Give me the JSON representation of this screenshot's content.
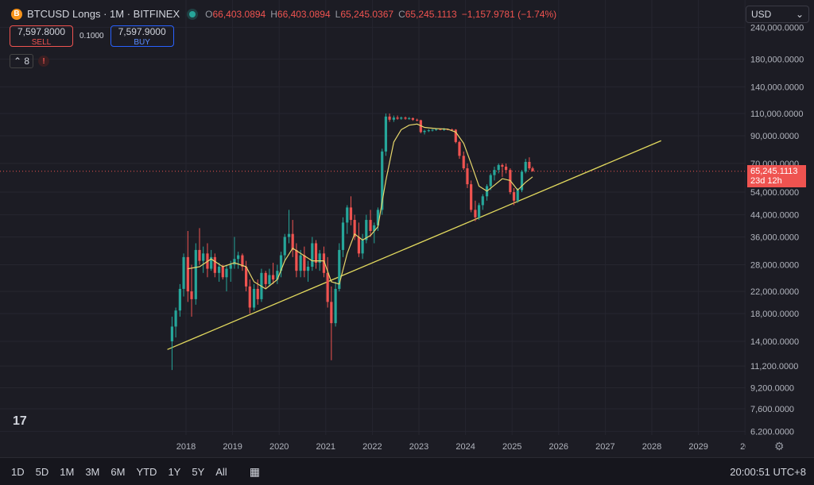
{
  "header": {
    "symbol_icon": "B",
    "title": "BTCUSD Longs · 1M · BITFINEX",
    "ohlc": {
      "o_label": "O",
      "o": "66,403.0894",
      "h_label": "H",
      "h": "66,403.0894",
      "l_label": "L",
      "l": "65,245.0367",
      "c_label": "C",
      "c": "65,245.1113",
      "change": "−1,157.9781 (−1.74%)"
    }
  },
  "trade": {
    "sell_price": "7,597.8000",
    "sell_label": "SELL",
    "qty": "0.1000",
    "buy_price": "7,597.9000",
    "buy_label": "BUY"
  },
  "indicators": {
    "count": "8",
    "warning": "!"
  },
  "currency": {
    "selected": "USD"
  },
  "current_price": {
    "value": "65,245.1113",
    "countdown": "23d 12h"
  },
  "logo": "17",
  "bottom_bar": {
    "ranges": [
      "1D",
      "5D",
      "1M",
      "3M",
      "6M",
      "YTD",
      "1Y",
      "5Y",
      "All"
    ],
    "clock": "20:00:51 UTC+8"
  },
  "colors": {
    "up": "#26a69a",
    "down": "#ef5350",
    "ma": "#e6d66b",
    "trendline": "#e2d95e",
    "current_line": "#ef5350"
  },
  "chart_data": {
    "type": "candlestick",
    "scale": "log",
    "y_ticks": [
      240000,
      180000,
      140000,
      110000,
      90000,
      70000,
      54000,
      44000,
      36000,
      28000,
      22000,
      18000,
      14000,
      11200,
      9200,
      7600,
      6200
    ],
    "y_tick_labels": [
      "240,000.0000",
      "180,000.0000",
      "140,000.0000",
      "110,000.0000",
      "90,000.0000",
      "70,000.0000",
      "54,000.0000",
      "44,000.0000",
      "36,000.0000",
      "28,000.0000",
      "22,000.0000",
      "18,000.0000",
      "14,000.0000",
      "11,200.0000",
      "9,200.0000",
      "7,600.0000",
      "6,200.0000"
    ],
    "x_tick_labels": [
      "2018",
      "2019",
      "2020",
      "2021",
      "2022",
      "2023",
      "2024",
      "2025",
      "2026",
      "2027",
      "2028",
      "2029",
      "20"
    ],
    "candles": [
      {
        "t": 2017.7,
        "o": 14000,
        "h": 17500,
        "l": 10800,
        "c": 16000
      },
      {
        "t": 2017.78,
        "o": 16000,
        "h": 19000,
        "l": 14500,
        "c": 18500
      },
      {
        "t": 2017.87,
        "o": 18500,
        "h": 23500,
        "l": 17500,
        "c": 22500
      },
      {
        "t": 2017.95,
        "o": 22500,
        "h": 31000,
        "l": 21000,
        "c": 30000
      },
      {
        "t": 2018.04,
        "o": 30000,
        "h": 38000,
        "l": 20000,
        "c": 22000
      },
      {
        "t": 2018.12,
        "o": 22000,
        "h": 28000,
        "l": 17500,
        "c": 20500
      },
      {
        "t": 2018.21,
        "o": 20500,
        "h": 34000,
        "l": 19500,
        "c": 32000
      },
      {
        "t": 2018.29,
        "o": 32000,
        "h": 39000,
        "l": 28000,
        "c": 29000
      },
      {
        "t": 2018.37,
        "o": 29000,
        "h": 33000,
        "l": 26000,
        "c": 31000
      },
      {
        "t": 2018.46,
        "o": 31000,
        "h": 34000,
        "l": 25000,
        "c": 27000
      },
      {
        "t": 2018.54,
        "o": 27000,
        "h": 32000,
        "l": 26500,
        "c": 30000
      },
      {
        "t": 2018.62,
        "o": 30000,
        "h": 31000,
        "l": 25000,
        "c": 26000
      },
      {
        "t": 2018.71,
        "o": 26000,
        "h": 28500,
        "l": 24000,
        "c": 27500
      },
      {
        "t": 2018.79,
        "o": 27500,
        "h": 28000,
        "l": 24500,
        "c": 25000
      },
      {
        "t": 2018.87,
        "o": 25000,
        "h": 28000,
        "l": 22000,
        "c": 27000
      },
      {
        "t": 2018.96,
        "o": 27000,
        "h": 29000,
        "l": 24000,
        "c": 28000
      },
      {
        "t": 2019.04,
        "o": 28000,
        "h": 36000,
        "l": 27000,
        "c": 29500
      },
      {
        "t": 2019.12,
        "o": 29500,
        "h": 31500,
        "l": 27000,
        "c": 30500
      },
      {
        "t": 2019.21,
        "o": 30500,
        "h": 31000,
        "l": 26500,
        "c": 27500
      },
      {
        "t": 2019.29,
        "o": 27500,
        "h": 29000,
        "l": 22000,
        "c": 23000
      },
      {
        "t": 2019.37,
        "o": 23000,
        "h": 24500,
        "l": 18000,
        "c": 19000
      },
      {
        "t": 2019.46,
        "o": 19000,
        "h": 23500,
        "l": 18500,
        "c": 22500
      },
      {
        "t": 2019.54,
        "o": 22500,
        "h": 24500,
        "l": 19500,
        "c": 20500
      },
      {
        "t": 2019.62,
        "o": 20500,
        "h": 27000,
        "l": 20000,
        "c": 26000
      },
      {
        "t": 2019.71,
        "o": 26000,
        "h": 26500,
        "l": 22500,
        "c": 23500
      },
      {
        "t": 2019.79,
        "o": 23500,
        "h": 27000,
        "l": 23000,
        "c": 25500
      },
      {
        "t": 2019.87,
        "o": 25500,
        "h": 28500,
        "l": 23500,
        "c": 24500
      },
      {
        "t": 2019.96,
        "o": 24500,
        "h": 28000,
        "l": 23500,
        "c": 26500
      },
      {
        "t": 2020.04,
        "o": 26500,
        "h": 31500,
        "l": 25000,
        "c": 30500
      },
      {
        "t": 2020.12,
        "o": 30500,
        "h": 37000,
        "l": 29000,
        "c": 36000
      },
      {
        "t": 2020.21,
        "o": 36000,
        "h": 46000,
        "l": 34000,
        "c": 37000
      },
      {
        "t": 2020.29,
        "o": 37000,
        "h": 42000,
        "l": 30000,
        "c": 32000
      },
      {
        "t": 2020.37,
        "o": 32000,
        "h": 34000,
        "l": 25000,
        "c": 26500
      },
      {
        "t": 2020.46,
        "o": 26500,
        "h": 32000,
        "l": 25000,
        "c": 30500
      },
      {
        "t": 2020.54,
        "o": 30500,
        "h": 33000,
        "l": 25000,
        "c": 26500
      },
      {
        "t": 2020.62,
        "o": 26500,
        "h": 29000,
        "l": 24000,
        "c": 27500
      },
      {
        "t": 2020.71,
        "o": 27500,
        "h": 36000,
        "l": 26500,
        "c": 34000
      },
      {
        "t": 2020.79,
        "o": 34000,
        "h": 35000,
        "l": 27000,
        "c": 28500
      },
      {
        "t": 2020.87,
        "o": 28500,
        "h": 32000,
        "l": 26500,
        "c": 31000
      },
      {
        "t": 2020.96,
        "o": 31000,
        "h": 33000,
        "l": 25000,
        "c": 26000
      },
      {
        "t": 2021.04,
        "o": 26000,
        "h": 30000,
        "l": 19000,
        "c": 20000
      },
      {
        "t": 2021.12,
        "o": 20000,
        "h": 23000,
        "l": 11800,
        "c": 16500
      },
      {
        "t": 2021.21,
        "o": 16500,
        "h": 24000,
        "l": 16000,
        "c": 22500
      },
      {
        "t": 2021.29,
        "o": 22500,
        "h": 34000,
        "l": 22000,
        "c": 32000
      },
      {
        "t": 2021.37,
        "o": 32000,
        "h": 43000,
        "l": 30000,
        "c": 41000
      },
      {
        "t": 2021.46,
        "o": 41000,
        "h": 48000,
        "l": 37000,
        "c": 47000
      },
      {
        "t": 2021.54,
        "o": 47000,
        "h": 52000,
        "l": 40000,
        "c": 42000
      },
      {
        "t": 2021.62,
        "o": 42000,
        "h": 44000,
        "l": 35000,
        "c": 36000
      },
      {
        "t": 2021.71,
        "o": 36000,
        "h": 41000,
        "l": 30000,
        "c": 31000
      },
      {
        "t": 2021.79,
        "o": 31000,
        "h": 37000,
        "l": 29500,
        "c": 35000
      },
      {
        "t": 2021.87,
        "o": 35000,
        "h": 44000,
        "l": 34000,
        "c": 42000
      },
      {
        "t": 2021.96,
        "o": 42000,
        "h": 46000,
        "l": 36000,
        "c": 38000
      },
      {
        "t": 2022.04,
        "o": 38000,
        "h": 41000,
        "l": 34000,
        "c": 40000
      },
      {
        "t": 2022.12,
        "o": 40000,
        "h": 47000,
        "l": 38000,
        "c": 46000
      },
      {
        "t": 2022.21,
        "o": 46000,
        "h": 80000,
        "l": 44000,
        "c": 78000
      },
      {
        "t": 2022.29,
        "o": 78000,
        "h": 110000,
        "l": 75000,
        "c": 107000
      },
      {
        "t": 2022.37,
        "o": 107000,
        "h": 110000,
        "l": 102000,
        "c": 104000
      },
      {
        "t": 2022.46,
        "o": 104000,
        "h": 108000,
        "l": 102000,
        "c": 106000
      },
      {
        "t": 2022.54,
        "o": 106000,
        "h": 108000,
        "l": 104000,
        "c": 105000
      },
      {
        "t": 2022.62,
        "o": 105000,
        "h": 107000,
        "l": 104000,
        "c": 106000
      },
      {
        "t": 2022.71,
        "o": 106000,
        "h": 107000,
        "l": 104000,
        "c": 105000
      },
      {
        "t": 2022.79,
        "o": 105000,
        "h": 106500,
        "l": 104000,
        "c": 105500
      },
      {
        "t": 2022.87,
        "o": 105500,
        "h": 106000,
        "l": 103000,
        "c": 104000
      },
      {
        "t": 2022.96,
        "o": 104000,
        "h": 105000,
        "l": 102500,
        "c": 103500
      },
      {
        "t": 2023.04,
        "o": 103500,
        "h": 104000,
        "l": 92000,
        "c": 93000
      },
      {
        "t": 2023.12,
        "o": 93000,
        "h": 95000,
        "l": 91000,
        "c": 94000
      },
      {
        "t": 2023.21,
        "o": 94000,
        "h": 95500,
        "l": 93000,
        "c": 94500
      },
      {
        "t": 2023.29,
        "o": 94500,
        "h": 95500,
        "l": 93500,
        "c": 95000
      },
      {
        "t": 2023.37,
        "o": 95000,
        "h": 96000,
        "l": 94000,
        "c": 95500
      },
      {
        "t": 2023.46,
        "o": 95500,
        "h": 96000,
        "l": 94500,
        "c": 95000
      },
      {
        "t": 2023.54,
        "o": 95000,
        "h": 96500,
        "l": 94000,
        "c": 95500
      },
      {
        "t": 2023.62,
        "o": 95500,
        "h": 96000,
        "l": 94500,
        "c": 95200
      },
      {
        "t": 2023.71,
        "o": 95200,
        "h": 96000,
        "l": 94500,
        "c": 95000
      },
      {
        "t": 2023.79,
        "o": 95000,
        "h": 95500,
        "l": 84000,
        "c": 85000
      },
      {
        "t": 2023.87,
        "o": 85000,
        "h": 86000,
        "l": 73000,
        "c": 75000
      },
      {
        "t": 2023.96,
        "o": 75000,
        "h": 78000,
        "l": 66000,
        "c": 67000
      },
      {
        "t": 2024.04,
        "o": 67000,
        "h": 70000,
        "l": 56000,
        "c": 58000
      },
      {
        "t": 2024.12,
        "o": 58000,
        "h": 60000,
        "l": 45000,
        "c": 46000
      },
      {
        "t": 2024.21,
        "o": 46000,
        "h": 50000,
        "l": 41500,
        "c": 43000
      },
      {
        "t": 2024.29,
        "o": 43000,
        "h": 49000,
        "l": 42000,
        "c": 48000
      },
      {
        "t": 2024.37,
        "o": 48000,
        "h": 53000,
        "l": 46000,
        "c": 52000
      },
      {
        "t": 2024.46,
        "o": 52000,
        "h": 58000,
        "l": 50000,
        "c": 57000
      },
      {
        "t": 2024.54,
        "o": 57000,
        "h": 64000,
        "l": 55000,
        "c": 63000
      },
      {
        "t": 2024.62,
        "o": 63000,
        "h": 68000,
        "l": 60000,
        "c": 66000
      },
      {
        "t": 2024.71,
        "o": 66000,
        "h": 70000,
        "l": 64000,
        "c": 69000
      },
      {
        "t": 2024.79,
        "o": 69000,
        "h": 70000,
        "l": 62000,
        "c": 68000
      },
      {
        "t": 2024.87,
        "o": 68000,
        "h": 70000,
        "l": 64000,
        "c": 66000
      },
      {
        "t": 2024.96,
        "o": 66000,
        "h": 67000,
        "l": 53000,
        "c": 54000
      },
      {
        "t": 2025.04,
        "o": 54000,
        "h": 56000,
        "l": 48000,
        "c": 50000
      },
      {
        "t": 2025.12,
        "o": 50000,
        "h": 56000,
        "l": 49000,
        "c": 55000
      },
      {
        "t": 2025.21,
        "o": 55000,
        "h": 66000,
        "l": 54000,
        "c": 65000
      },
      {
        "t": 2025.29,
        "o": 65000,
        "h": 73000,
        "l": 64000,
        "c": 71000
      },
      {
        "t": 2025.37,
        "o": 71000,
        "h": 74000,
        "l": 66000,
        "c": 67000
      },
      {
        "t": 2025.44,
        "o": 67000,
        "h": 68000,
        "l": 65000,
        "c": 65245
      }
    ],
    "ma": [
      [
        2018.04,
        27000
      ],
      [
        2018.29,
        27500
      ],
      [
        2018.54,
        29500
      ],
      [
        2018.79,
        27500
      ],
      [
        2019.04,
        28500
      ],
      [
        2019.29,
        27500
      ],
      [
        2019.46,
        24000
      ],
      [
        2019.71,
        22500
      ],
      [
        2019.96,
        24500
      ],
      [
        2020.12,
        29000
      ],
      [
        2020.29,
        32500
      ],
      [
        2020.46,
        31000
      ],
      [
        2020.71,
        29000
      ],
      [
        2020.96,
        29000
      ],
      [
        2021.12,
        24000
      ],
      [
        2021.29,
        23500
      ],
      [
        2021.46,
        31000
      ],
      [
        2021.62,
        37000
      ],
      [
        2021.79,
        35000
      ],
      [
        2021.96,
        36500
      ],
      [
        2022.12,
        39500
      ],
      [
        2022.29,
        60000
      ],
      [
        2022.46,
        85000
      ],
      [
        2022.62,
        95000
      ],
      [
        2022.79,
        99000
      ],
      [
        2022.96,
        100000
      ],
      [
        2023.12,
        97000
      ],
      [
        2023.37,
        96000
      ],
      [
        2023.62,
        95500
      ],
      [
        2023.79,
        93000
      ],
      [
        2023.96,
        84000
      ],
      [
        2024.12,
        70000
      ],
      [
        2024.29,
        57000
      ],
      [
        2024.46,
        54500
      ],
      [
        2024.62,
        57500
      ],
      [
        2024.79,
        61000
      ],
      [
        2024.96,
        60000
      ],
      [
        2025.12,
        55000
      ],
      [
        2025.29,
        59000
      ],
      [
        2025.44,
        62000
      ]
    ],
    "trendline": [
      [
        2017.6,
        13000
      ],
      [
        2028.2,
        86000
      ]
    ],
    "current_price_value": 65245.1113
  }
}
